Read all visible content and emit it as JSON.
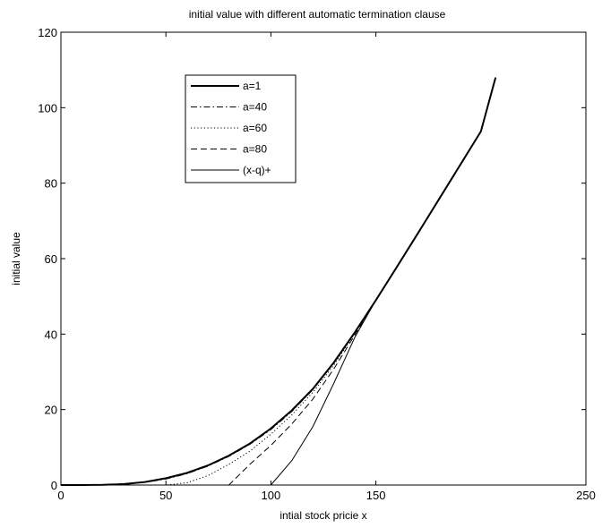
{
  "chart_data": {
    "type": "line",
    "title": "initial value with different automatic termination clause",
    "xlabel": "intial stock pricie x",
    "ylabel": "initial value",
    "xlim": [
      0,
      250
    ],
    "ylim": [
      0,
      120
    ],
    "xticks": [
      "0",
      "50",
      "100",
      "150",
      "250"
    ],
    "xticks_values": [
      0,
      50,
      100,
      150,
      250
    ],
    "yticks": [
      "0",
      "20",
      "40",
      "60",
      "80",
      "100",
      "120"
    ],
    "yticks_values": [
      0,
      20,
      40,
      60,
      80,
      100,
      120
    ],
    "grid": false,
    "legend_position": "top-left",
    "x": [
      0,
      10,
      20,
      30,
      40,
      50,
      60,
      70,
      80,
      90,
      100,
      110,
      120,
      130,
      140,
      150,
      160,
      170,
      180,
      190,
      200,
      207
    ],
    "series": [
      {
        "name": "a=1",
        "style": "solid-thick",
        "values": [
          0,
          0,
          0.05,
          0.25,
          0.8,
          1.8,
          3.2,
          5.2,
          7.8,
          11.0,
          15.0,
          19.8,
          25.5,
          32.5,
          40.5,
          49.0,
          57.8,
          66.7,
          75.7,
          84.7,
          93.7,
          108
        ]
      },
      {
        "name": "a=40",
        "style": "dashdot",
        "values": [
          0,
          0,
          0.03,
          0.2,
          0.7,
          1.6,
          3.0,
          5.0,
          7.6,
          10.8,
          14.7,
          19.5,
          25.3,
          32.3,
          40.4,
          49.0,
          57.8,
          66.7,
          75.7,
          84.7,
          93.7,
          108
        ]
      },
      {
        "name": "a=60",
        "style": "dotted",
        "values": [
          0,
          0,
          0,
          0,
          0,
          0,
          0.6,
          2.5,
          5.5,
          9.0,
          13.5,
          18.6,
          24.6,
          31.8,
          40.2,
          49.0,
          57.8,
          66.7,
          75.7,
          84.7,
          93.7,
          108
        ]
      },
      {
        "name": "a=80",
        "style": "dashed",
        "values": [
          0,
          0,
          0,
          0,
          0,
          0,
          0,
          0,
          0,
          5.5,
          10.5,
          16.2,
          22.8,
          30.8,
          39.8,
          49.0,
          57.8,
          66.7,
          75.7,
          84.7,
          93.7,
          108
        ]
      },
      {
        "name": "(x-q)+",
        "style": "solid-thin",
        "values": [
          0,
          0,
          0,
          0,
          0,
          0,
          0,
          0,
          0,
          0,
          0,
          6.5,
          15.5,
          27.0,
          39.2,
          49.0,
          57.8,
          66.7,
          75.7,
          84.7,
          93.7,
          108
        ]
      }
    ]
  }
}
